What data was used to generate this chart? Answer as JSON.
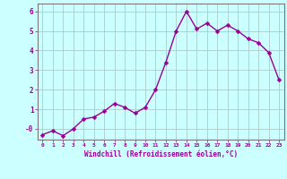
{
  "x": [
    0,
    1,
    2,
    3,
    4,
    5,
    6,
    7,
    8,
    9,
    10,
    11,
    12,
    13,
    14,
    15,
    16,
    17,
    18,
    19,
    20,
    21,
    22,
    23
  ],
  "y": [
    -0.3,
    -0.1,
    -0.35,
    0.0,
    0.5,
    0.6,
    0.9,
    1.3,
    1.1,
    0.8,
    1.1,
    2.0,
    3.4,
    5.0,
    6.0,
    5.1,
    5.4,
    5.0,
    5.3,
    5.0,
    4.6,
    4.4,
    3.9,
    2.5
  ],
  "line_color": "#990099",
  "marker_color": "#990099",
  "bg_color": "#ccffff",
  "grid_color": "#aacccc",
  "xlabel": "Windchill (Refroidissement éolien,°C)",
  "xlabel_color": "#990099",
  "tick_color": "#990099",
  "ytick_labels": [
    "-0",
    "1",
    "2",
    "3",
    "4",
    "5",
    "6"
  ],
  "ytick_vals": [
    0,
    1,
    2,
    3,
    4,
    5,
    6
  ],
  "ylim": [
    -0.55,
    6.4
  ],
  "xlim": [
    -0.5,
    23.5
  ],
  "line_width": 1.0,
  "marker_size": 2.5
}
